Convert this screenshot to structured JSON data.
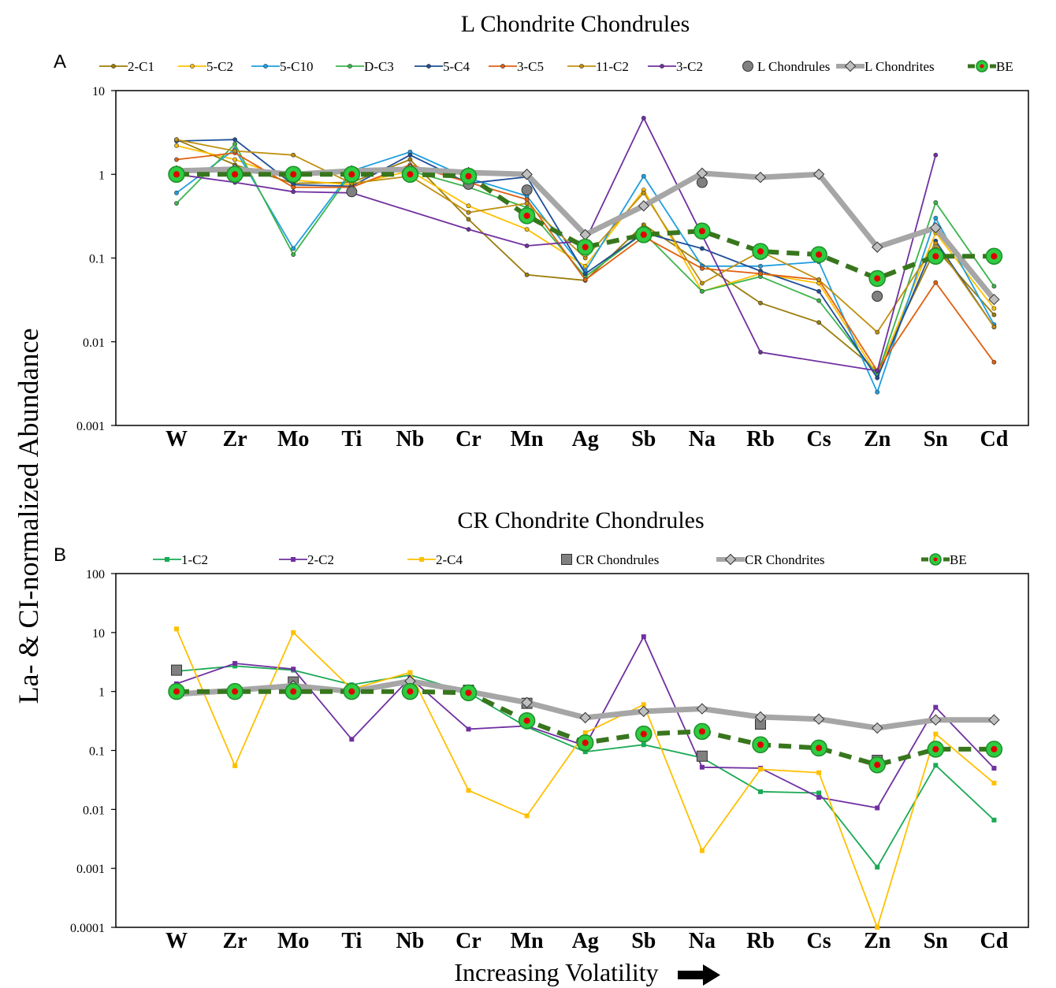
{
  "figure": {
    "ylabel": "La- & CI-normalized Abundance",
    "xlabel": "Increasing Volatility",
    "arrow_icon": "right-arrow-icon"
  },
  "chart_data": [
    {
      "panel": "A",
      "title": "L Chondrite Chondrules",
      "type": "line",
      "yscale": "log",
      "ylim": [
        0.001,
        10
      ],
      "yticks": [
        "10",
        "1",
        "0.1",
        "0.01",
        "0.001"
      ],
      "categories": [
        "W",
        "Zr",
        "Mo",
        "Ti",
        "Nb",
        "Cr",
        "Mn",
        "Ag",
        "Sb",
        "Na",
        "Rb",
        "Cs",
        "Zn",
        "Sn",
        "Cd"
      ],
      "legend_position": "top",
      "series": [
        {
          "name": "2-C1",
          "color": "#9a7d0a",
          "style": "thin-dot",
          "values": [
            2.6,
            1.3,
            0.78,
            0.8,
            1.5,
            0.29,
            0.063,
            0.054,
            0.25,
            null,
            0.029,
            0.017,
            0.0045,
            0.13,
            0.021
          ]
        },
        {
          "name": "5-C2",
          "color": "#ffc000",
          "style": "thin-dot",
          "values": [
            2.2,
            1.5,
            0.85,
            0.75,
            1.1,
            0.42,
            0.22,
            0.08,
            0.65,
            0.04,
            0.065,
            0.05,
            0.004,
            0.2,
            0.025
          ]
        },
        {
          "name": "5-C10",
          "color": "#1f9fe0",
          "style": "thin-dot",
          "values": [
            0.6,
            2.0,
            0.13,
            1.1,
            1.85,
            0.9,
            0.55,
            0.07,
            0.95,
            0.08,
            0.08,
            0.09,
            0.0025,
            0.3,
            0.016
          ]
        },
        {
          "name": "D-C3",
          "color": "#3cb44b",
          "style": "thin-dot",
          "values": [
            0.45,
            2.3,
            0.11,
            1.05,
            1.1,
            0.7,
            0.4,
            0.06,
            0.2,
            0.04,
            0.06,
            0.031,
            0.004,
            0.46,
            0.046
          ]
        },
        {
          "name": "5-C4",
          "color": "#1f4e99",
          "style": "thin-dot",
          "values": [
            2.5,
            2.6,
            0.75,
            0.72,
            1.7,
            0.78,
            0.93,
            0.065,
            0.2,
            0.13,
            0.07,
            0.04,
            0.0037,
            0.16,
            0.015
          ]
        },
        {
          "name": "3-C5",
          "color": "#e06010",
          "style": "thin-dot",
          "values": [
            1.5,
            1.8,
            0.7,
            0.7,
            1.3,
            0.8,
            0.5,
            0.055,
            0.18,
            0.075,
            0.065,
            0.055,
            0.0045,
            0.051,
            0.0057
          ]
        },
        {
          "name": "11-C2",
          "color": "#c09010",
          "style": "thin-dot",
          "values": [
            2.6,
            1.9,
            1.7,
            0.78,
            0.95,
            0.35,
            0.45,
            0.1,
            0.6,
            0.05,
            0.12,
            0.055,
            0.013,
            0.15,
            0.015
          ]
        },
        {
          "name": "3-C2",
          "color": "#7030a0",
          "style": "thin-dot",
          "values": [
            1.0,
            0.8,
            0.62,
            0.6,
            null,
            0.22,
            0.14,
            0.16,
            4.7,
            null,
            0.0075,
            null,
            0.0045,
            1.7,
            null
          ]
        },
        {
          "name": "L Chondrules",
          "color": "#808080",
          "style": "marker-circle",
          "values": [
            null,
            null,
            null,
            0.62,
            null,
            0.76,
            0.65,
            null,
            null,
            0.8,
            null,
            null,
            0.035,
            null,
            null
          ]
        },
        {
          "name": "L Chondrites",
          "color": "#a6a6a6",
          "style": "thick-diamond",
          "values": [
            1.1,
            1.15,
            1.0,
            1.1,
            1.15,
            1.05,
            1.0,
            0.19,
            0.42,
            1.03,
            0.92,
            1.0,
            0.135,
            0.23,
            0.032
          ]
        },
        {
          "name": "BE",
          "color": "#38761d",
          "style": "dashed-be",
          "values": [
            1.0,
            1.0,
            1.0,
            1.0,
            1.0,
            0.95,
            0.32,
            0.135,
            0.19,
            0.21,
            0.12,
            0.11,
            0.057,
            0.105,
            0.105
          ]
        }
      ]
    },
    {
      "panel": "B",
      "title": "CR Chondrite Chondrules",
      "type": "line",
      "yscale": "log",
      "ylim": [
        0.0001,
        100
      ],
      "yticks": [
        "100",
        "10",
        "1",
        "0.1",
        "0.01",
        "0.001",
        "0.0001"
      ],
      "categories": [
        "W",
        "Zr",
        "Mo",
        "Ti",
        "Nb",
        "Cr",
        "Mn",
        "Ag",
        "Sb",
        "Na",
        "Rb",
        "Cs",
        "Zn",
        "Sn",
        "Cd"
      ],
      "legend_position": "top",
      "series": [
        {
          "name": "1-C2",
          "color": "#1aaa55",
          "style": "thin-square",
          "values": [
            2.2,
            2.7,
            2.3,
            1.3,
            1.9,
            0.95,
            0.25,
            0.095,
            0.125,
            0.075,
            0.02,
            0.019,
            0.00105,
            0.056,
            0.0066
          ]
        },
        {
          "name": "2-C2",
          "color": "#7030a0",
          "style": "thin-square",
          "values": [
            1.35,
            3.0,
            2.4,
            0.155,
            1.7,
            0.23,
            0.26,
            0.12,
            8.5,
            0.052,
            0.05,
            0.016,
            0.0106,
            0.54,
            0.05
          ]
        },
        {
          "name": "2-C4",
          "color": "#ffc000",
          "style": "thin-square",
          "values": [
            11.5,
            0.055,
            10.0,
            1.1,
            2.1,
            0.021,
            0.0078,
            0.2,
            0.6,
            0.002,
            0.048,
            0.042,
            0.0001,
            0.19,
            0.028
          ]
        },
        {
          "name": "CR Chondrules",
          "color": "#808080",
          "style": "marker-square",
          "values": [
            2.3,
            0.95,
            1.45,
            1.0,
            1.2,
            1.05,
            0.63,
            null,
            null,
            0.08,
            0.28,
            null,
            0.068,
            null,
            null
          ]
        },
        {
          "name": "CR Chondrites",
          "color": "#a6a6a6",
          "style": "thick-diamond",
          "values": [
            0.9,
            1.05,
            1.25,
            1.0,
            1.5,
            1.0,
            0.65,
            0.36,
            0.46,
            0.51,
            0.37,
            0.34,
            0.24,
            0.33,
            0.33
          ]
        },
        {
          "name": "BE",
          "color": "#38761d",
          "style": "dashed-be",
          "values": [
            1.0,
            1.0,
            1.0,
            1.0,
            1.0,
            0.95,
            0.32,
            0.135,
            0.19,
            0.21,
            0.125,
            0.11,
            0.057,
            0.105,
            0.105
          ]
        }
      ]
    }
  ]
}
